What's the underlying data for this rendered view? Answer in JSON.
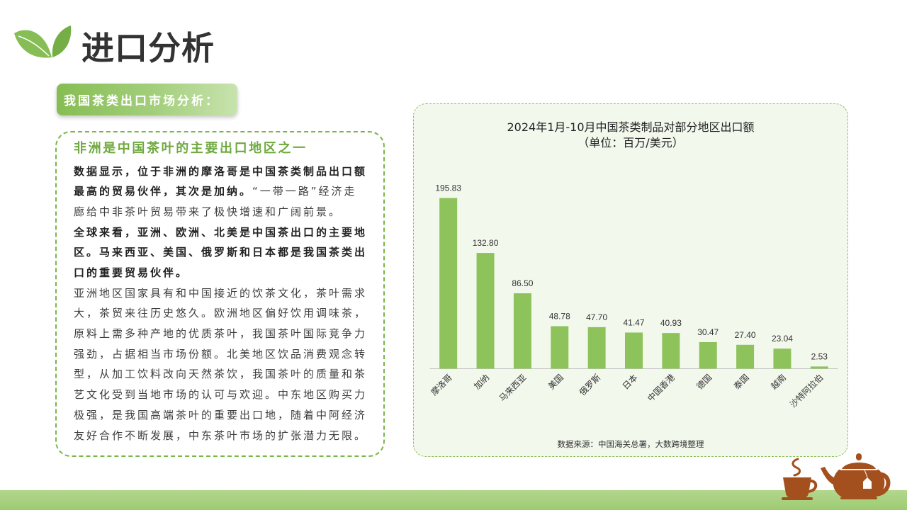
{
  "page": {
    "title": "进口分析",
    "logo_icon": "leaf-icon"
  },
  "section_label": {
    "text": "我国茶类出口市场分析："
  },
  "text_card": {
    "heading": "非洲是中国茶叶的主要出口地区之一",
    "lines": [
      [
        "数据显示，位于非洲的摩洛哥是中国茶类制品出口额"
      ],
      [
        "最高的贸易伙伴，其次是加纳。",
        "“一带一路”经济走"
      ],
      [
        "廊给中非茶叶贸易带来了极快增速和广阔前景。"
      ],
      [
        "全球来看，亚洲、欧洲、北美是中国茶出口的主要地"
      ],
      [
        "区。马来西亚、美国、俄罗斯和日本都是我国茶类出"
      ],
      [
        "口的重要贸易伙伴。"
      ],
      [
        "亚洲地区国家具有和中国接近的饮茶文化，茶叶需求"
      ],
      [
        "大，茶贸来往历史悠久。欧洲地区偏好饮用调味茶，"
      ],
      [
        "原料上需多种产地的优质茶叶，我国茶叶国际竞争力"
      ],
      [
        "强劲，占据相当市场份额。北美地区饮品消费观念转"
      ],
      [
        "型，从加工饮料改向天然茶饮，我国茶叶的质量和茶"
      ],
      [
        "艺文化受到当地市场的认可与欢迎。中东地区购买力"
      ],
      [
        "极强，是我国高端茶叶的重要出口地，随着中阿经济"
      ],
      [
        "友好合作不断发展，中东茶叶市场的扩张潜力无限。"
      ]
    ]
  },
  "chart_data": {
    "type": "bar",
    "title": "2024年1月-10月中国茶类制品对部分地区出口额",
    "subtitle": "（单位：百万/美元）",
    "categories": [
      "摩洛哥",
      "加纳",
      "马来西亚",
      "美国",
      "俄罗斯",
      "日本",
      "中国香港",
      "德国",
      "泰国",
      "越南",
      "沙特阿拉伯"
    ],
    "values": [
      195.83,
      132.8,
      86.5,
      48.78,
      47.7,
      41.47,
      40.93,
      30.47,
      27.4,
      23.04,
      2.53
    ],
    "value_labels": [
      "195.83",
      "132.80",
      "86.50",
      "48.78",
      "47.70",
      "41.47",
      "40.93",
      "30.47",
      "27.40",
      "23.04",
      "2.53"
    ],
    "xlabel": "",
    "ylabel": "",
    "ylim": [
      0,
      200
    ],
    "grid": false,
    "legend": "none",
    "source": "数据来源：中国海关总署，大数跨境整理"
  },
  "decorations": {
    "cup_icon": "tea-cup-icon",
    "teapot_icon": "teapot-icon"
  },
  "colors": {
    "accent_green": "#7ab648",
    "heading_green": "#6fa93f",
    "bar_green": "#8dc35a",
    "panel_background": "#f3f8ed",
    "teapot_brown": "#a4501e"
  }
}
